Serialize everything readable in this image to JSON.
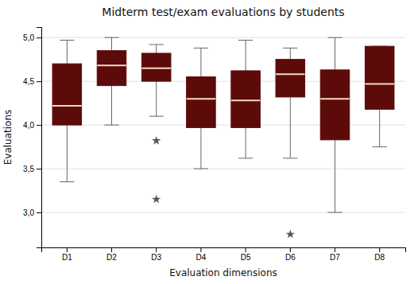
{
  "chart_data": {
    "type": "box",
    "title": "Midterm test/exam evaluations by students",
    "xlabel": "Evaluation dimensions",
    "ylabel": "Evaluations",
    "categories": [
      "D1",
      "D2",
      "D3",
      "D4",
      "D5",
      "D6",
      "D7",
      "D8"
    ],
    "boxes": [
      {
        "q1": 4.0,
        "median": 4.22,
        "q3": 4.7,
        "whislo": 3.35,
        "whishi": 4.97,
        "fliers": []
      },
      {
        "q1": 4.45,
        "median": 4.68,
        "q3": 4.85,
        "whislo": 4.0,
        "whishi": 5.0,
        "fliers": []
      },
      {
        "q1": 4.5,
        "median": 4.65,
        "q3": 4.82,
        "whislo": 4.1,
        "whishi": 4.92,
        "fliers": [
          3.82,
          3.15
        ]
      },
      {
        "q1": 3.97,
        "median": 4.3,
        "q3": 4.55,
        "whislo": 3.5,
        "whishi": 4.88,
        "fliers": []
      },
      {
        "q1": 3.97,
        "median": 4.28,
        "q3": 4.62,
        "whislo": 3.62,
        "whishi": 4.97,
        "fliers": []
      },
      {
        "q1": 4.32,
        "median": 4.58,
        "q3": 4.75,
        "whislo": 3.62,
        "whishi": 4.88,
        "fliers": [
          2.75
        ]
      },
      {
        "q1": 3.83,
        "median": 4.3,
        "q3": 4.63,
        "whislo": 3.0,
        "whishi": 5.0,
        "fliers": []
      },
      {
        "q1": 4.18,
        "median": 4.47,
        "q3": 4.9,
        "whislo": 3.75,
        "whishi": 4.9,
        "fliers": []
      }
    ],
    "color": "#5C0A0A",
    "marker": "star",
    "ylim": [
      2.6,
      5.12
    ],
    "yticks": [
      {
        "value": 3.0,
        "label": "3,0"
      },
      {
        "value": 3.5,
        "label": "3,5"
      },
      {
        "value": 4.0,
        "label": "4,0"
      },
      {
        "value": 4.5,
        "label": "4,5"
      },
      {
        "value": 5.0,
        "label": "5,0"
      }
    ],
    "grid": true
  }
}
